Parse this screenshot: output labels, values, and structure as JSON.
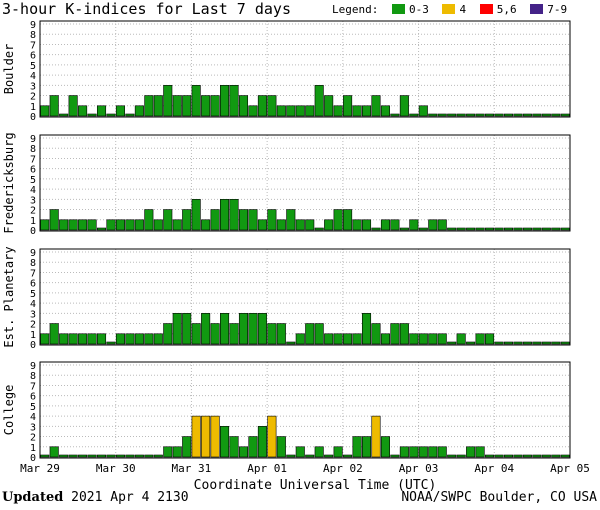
{
  "header": {
    "title": "3-hour K-indices for Last 7 days",
    "legend_label": "Legend:",
    "legend": [
      {
        "label": "0-3",
        "color": "#119911"
      },
      {
        "label": "4",
        "color": "#eebb00"
      },
      {
        "label": "5,6",
        "color": "#ff0000"
      },
      {
        "label": "7-9",
        "color": "#442288"
      }
    ]
  },
  "footer": {
    "updated_label": "Updated",
    "updated_value": " 2021 Apr  4 2130",
    "source": "NOAA/SWPC Boulder, CO USA"
  },
  "chart_data": {
    "type": "bar",
    "xlabel": "Coordinate Universal Time (UTC)",
    "x_tick_labels": [
      "Mar 29",
      "Mar 30",
      "Mar 31",
      "Apr 01",
      "Apr 02",
      "Apr 03",
      "Apr 04",
      "Apr 05"
    ],
    "ylim": [
      0,
      9
    ],
    "y_ticks": [
      0,
      1,
      2,
      3,
      4,
      5,
      6,
      7,
      8,
      9
    ],
    "bars_per_day": 8,
    "colors": {
      "0-3": "#119911",
      "4": "#eebb00",
      "5,6": "#ff0000",
      "7-9": "#442288"
    },
    "panels": [
      {
        "name": "Boulder",
        "values": [
          1,
          2,
          0,
          2,
          1,
          0,
          1,
          0,
          1,
          0,
          1,
          2,
          2,
          3,
          2,
          2,
          3,
          2,
          2,
          3,
          3,
          2,
          1,
          2,
          2,
          1,
          1,
          1,
          1,
          3,
          2,
          1,
          2,
          1,
          1,
          2,
          1,
          0,
          2,
          0,
          1,
          0,
          0,
          0,
          0,
          0,
          0,
          0,
          0,
          0,
          0,
          0,
          0,
          0,
          0,
          0
        ]
      },
      {
        "name": "Fredericksburg",
        "values": [
          1,
          2,
          1,
          1,
          1,
          1,
          0,
          1,
          1,
          1,
          1,
          2,
          1,
          2,
          1,
          2,
          3,
          1,
          2,
          3,
          3,
          2,
          2,
          1,
          2,
          1,
          2,
          1,
          1,
          0,
          1,
          2,
          2,
          1,
          1,
          0,
          1,
          1,
          0,
          1,
          0,
          1,
          1,
          0,
          0,
          0,
          0,
          0,
          0,
          0,
          0,
          0,
          0,
          0,
          0,
          0
        ]
      },
      {
        "name": "Est. Planetary",
        "values": [
          1,
          2,
          1,
          1,
          1,
          1,
          1,
          0,
          1,
          1,
          1,
          1,
          1,
          2,
          3,
          3,
          2,
          3,
          2,
          3,
          2,
          3,
          3,
          3,
          2,
          2,
          0,
          1,
          2,
          2,
          1,
          1,
          1,
          1,
          3,
          2,
          1,
          2,
          2,
          1,
          1,
          1,
          1,
          0,
          1,
          0,
          1,
          1,
          0,
          0,
          0,
          0,
          0,
          0,
          0,
          0
        ]
      },
      {
        "name": "College",
        "values": [
          0,
          1,
          0,
          0,
          0,
          0,
          0,
          0,
          0,
          0,
          0,
          0,
          0,
          1,
          1,
          2,
          4,
          4,
          4,
          3,
          2,
          1,
          2,
          3,
          4,
          2,
          0,
          1,
          0,
          1,
          0,
          1,
          0,
          2,
          2,
          4,
          2,
          0,
          1,
          1,
          1,
          1,
          1,
          0,
          0,
          1,
          1,
          0,
          0,
          0,
          0,
          0,
          0,
          0,
          0,
          0
        ]
      }
    ]
  }
}
